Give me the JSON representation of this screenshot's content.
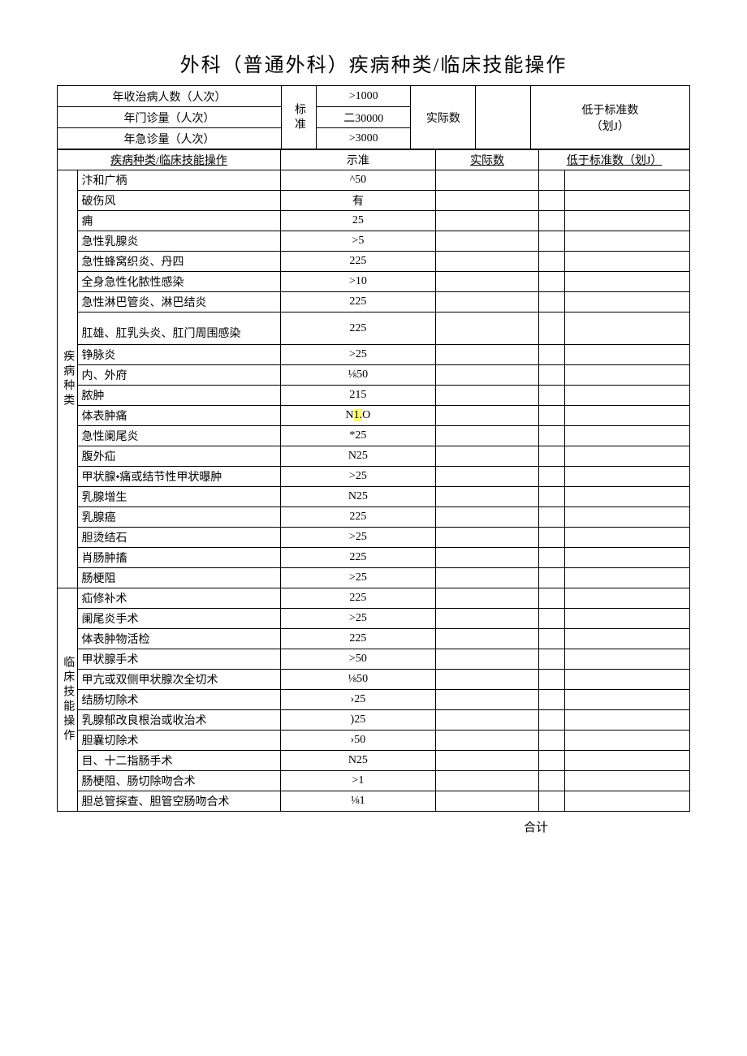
{
  "title": "外科（普通外科）疾病种类/临床技能操作",
  "top": {
    "rows": [
      {
        "label": "年收治病人数（人次）",
        "std": ">1000"
      },
      {
        "label": "年门诊量（人次）",
        "std": "二30000"
      },
      {
        "label": "年急诊量（人次）",
        "std": ">3000"
      }
    ],
    "stdHeader": "标准",
    "actualHeader": "实际数",
    "belowHeader": "低于标准数",
    "belowSub": "（划J）"
  },
  "sectionHeader": {
    "col1": "疾病种类/临床技能操作",
    "col2": "示准",
    "col3": "实际数",
    "col4": "低于标准数（划J）"
  },
  "group1": {
    "label": "疾病种类",
    "rows": [
      {
        "name": "汴和广柄",
        "std": "^50"
      },
      {
        "name": "破伤风",
        "std": "有"
      },
      {
        "name": "痈",
        "std": "25"
      },
      {
        "name": "急性乳腺炎",
        "std": ">5"
      },
      {
        "name": "急性蜂窝织炎、丹四",
        "std": "225"
      },
      {
        "name": "全身急性化脓性感染",
        "std": ">10"
      },
      {
        "name": "急性淋巴管炎、淋巴结炎",
        "std": "225"
      },
      {
        "name": "肛雄、肛乳头炎、肛门周围感染",
        "std": "225",
        "tall": true
      },
      {
        "name": "铮脉炎",
        "std": ">25"
      },
      {
        "name": "内、外府",
        "std": "⅛50"
      },
      {
        "name": "脓肿",
        "std": "215"
      },
      {
        "name": "体表肿痛",
        "std_pre": "N",
        "std_hl": "1.",
        "std_post": "O"
      },
      {
        "name": "急性阑尾炎",
        "std": "*25"
      },
      {
        "name": "腹外疝",
        "std": "N25"
      },
      {
        "name": "甲状腺•痛或结节性甲状曝肿",
        "std": ">25"
      },
      {
        "name": "乳腺增生",
        "std": "N25"
      },
      {
        "name": "乳腺癌",
        "std": "225"
      },
      {
        "name": "胆烫结石",
        "std": ">25"
      },
      {
        "name": "肖肠肿搐",
        "std": "225"
      },
      {
        "name": "肠梗阻",
        "std": ">25"
      }
    ]
  },
  "group2": {
    "label": "临床技能操作",
    "rows": [
      {
        "name": "疝修补术",
        "std": "225"
      },
      {
        "name": "阑尾炎手术",
        "std": ">25"
      },
      {
        "name": "体表肿物活检",
        "std": "225"
      },
      {
        "name": "甲状腺手术",
        "std": ">50"
      },
      {
        "name": "甲亢或双侧甲状腺次全切术",
        "std": "⅛50"
      },
      {
        "name": "结肠切除术",
        "std": "›25"
      },
      {
        "name": "乳腺郁改良根治或收治术",
        "std": ")25"
      },
      {
        "name": "胆囊切除术",
        "std": "›50"
      },
      {
        "name": "目、十二指肠手术",
        "std": "N25"
      },
      {
        "name": "肠梗阻、肠切除吻合术",
        "std": ">1"
      },
      {
        "name": "胆总管探查、胆管空肠吻合术",
        "std": "⅛1"
      }
    ]
  },
  "footer": "合计"
}
